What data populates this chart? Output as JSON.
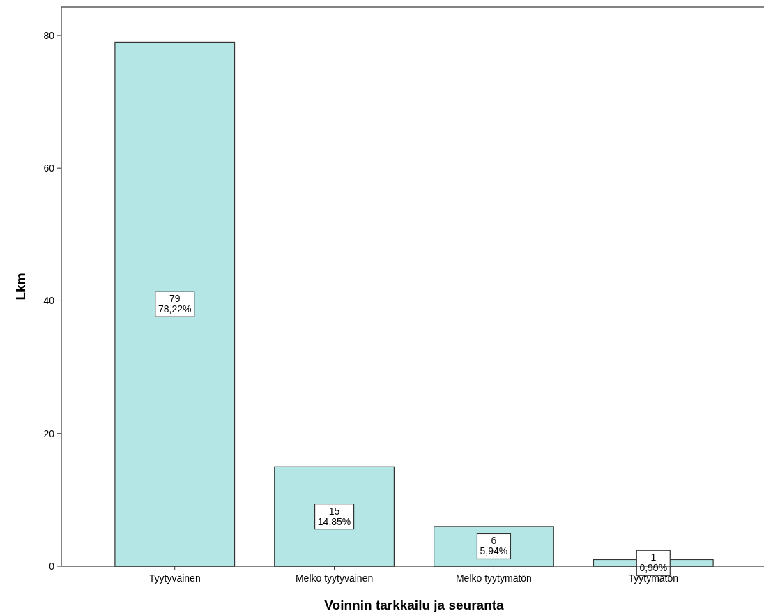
{
  "chart_data": {
    "type": "bar",
    "xlabel": "Voinnin tarkkailu ja seuranta",
    "ylabel": "Lkm",
    "categories": [
      "Tyytyväinen",
      "Melko tyytyväinen",
      "Melko tyytymätön",
      "Tyytymätön"
    ],
    "values": [
      79,
      15,
      6,
      1
    ],
    "value_labels": [
      "79\n78,22%",
      "15\n14,85%",
      "6\n5,94%",
      "1\n0,99%"
    ],
    "color": "#b5e6e6",
    "ylim": [
      0,
      84.3
    ],
    "yticks": [
      0,
      20,
      40,
      60,
      80
    ],
    "grid": false
  }
}
